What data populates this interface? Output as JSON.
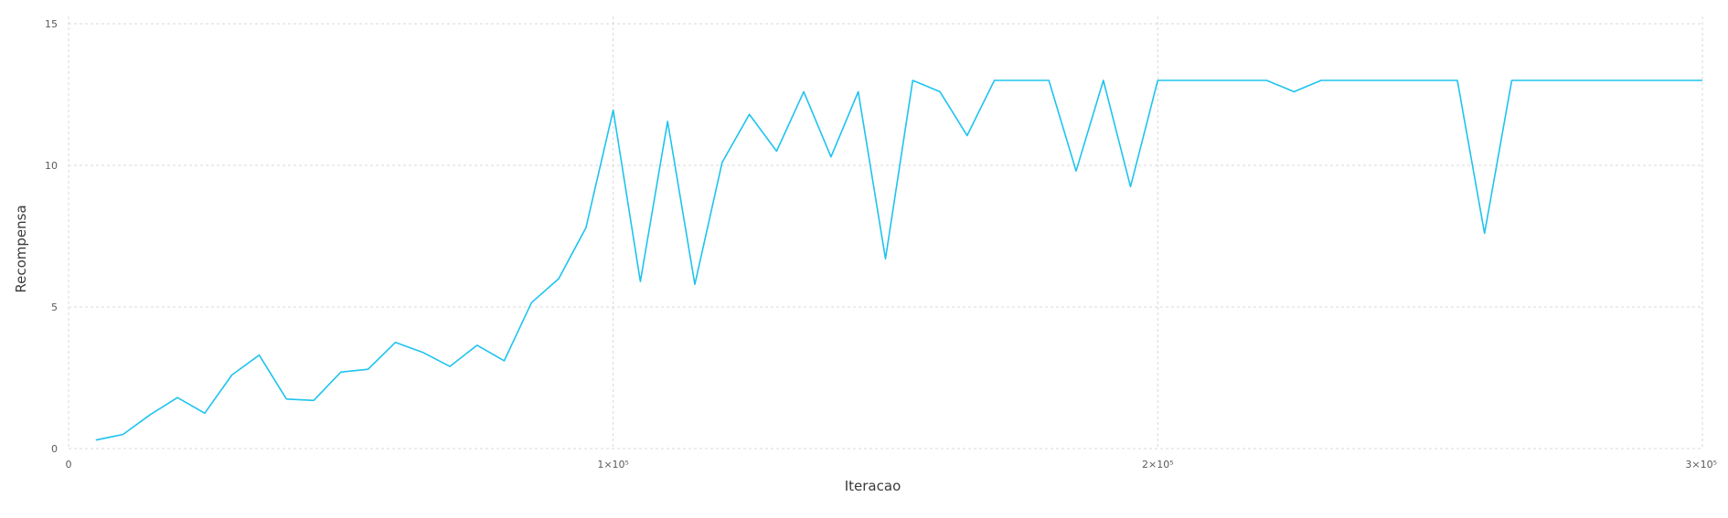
{
  "chart_data": {
    "type": "line",
    "xlabel": "Iteracao",
    "ylabel": "Recompensa",
    "xlim": [
      0,
      300000
    ],
    "ylim": [
      0,
      15
    ],
    "grid": true,
    "x_ticks": [
      {
        "value": 0,
        "label": "0"
      },
      {
        "value": 100000,
        "label": "1×10⁵"
      },
      {
        "value": 200000,
        "label": "2×10⁵"
      },
      {
        "value": 300000,
        "label": "3×10⁵"
      }
    ],
    "y_ticks": [
      {
        "value": 0,
        "label": "0"
      },
      {
        "value": 5,
        "label": "5"
      },
      {
        "value": 10,
        "label": "10"
      },
      {
        "value": 15,
        "label": "15"
      }
    ],
    "series": [
      {
        "color": "#1ec3ef",
        "points": [
          [
            5000,
            0.3
          ],
          [
            10000,
            0.5
          ],
          [
            15000,
            1.2
          ],
          [
            20000,
            1.8
          ],
          [
            25000,
            1.25
          ],
          [
            30000,
            2.6
          ],
          [
            35000,
            3.3
          ],
          [
            40000,
            1.75
          ],
          [
            45000,
            1.7
          ],
          [
            50000,
            2.7
          ],
          [
            55000,
            2.8
          ],
          [
            60000,
            3.75
          ],
          [
            65000,
            3.4
          ],
          [
            70000,
            2.9
          ],
          [
            75000,
            3.65
          ],
          [
            80000,
            3.1
          ],
          [
            85000,
            5.15
          ],
          [
            90000,
            6.0
          ],
          [
            95000,
            7.8
          ],
          [
            100000,
            11.95
          ],
          [
            105000,
            5.9
          ],
          [
            110000,
            11.55
          ],
          [
            115000,
            5.8
          ],
          [
            120000,
            10.1
          ],
          [
            125000,
            11.8
          ],
          [
            130000,
            10.5
          ],
          [
            135000,
            12.6
          ],
          [
            140000,
            10.3
          ],
          [
            145000,
            12.6
          ],
          [
            150000,
            6.7
          ],
          [
            155000,
            13.0
          ],
          [
            160000,
            12.6
          ],
          [
            165000,
            11.05
          ],
          [
            170000,
            13.0
          ],
          [
            175000,
            13.0
          ],
          [
            180000,
            13.0
          ],
          [
            185000,
            9.8
          ],
          [
            190000,
            13.0
          ],
          [
            195000,
            9.25
          ],
          [
            200000,
            13.0
          ],
          [
            205000,
            13.0
          ],
          [
            210000,
            13.0
          ],
          [
            215000,
            13.0
          ],
          [
            220000,
            13.0
          ],
          [
            225000,
            12.6
          ],
          [
            230000,
            13.0
          ],
          [
            235000,
            13.0
          ],
          [
            240000,
            13.0
          ],
          [
            245000,
            13.0
          ],
          [
            250000,
            13.0
          ],
          [
            255000,
            13.0
          ],
          [
            260000,
            7.6
          ],
          [
            265000,
            13.0
          ],
          [
            270000,
            13.0
          ],
          [
            275000,
            13.0
          ],
          [
            280000,
            13.0
          ],
          [
            285000,
            13.0
          ],
          [
            290000,
            13.0
          ],
          [
            295000,
            13.0
          ],
          [
            300000,
            13.0
          ]
        ]
      }
    ]
  }
}
